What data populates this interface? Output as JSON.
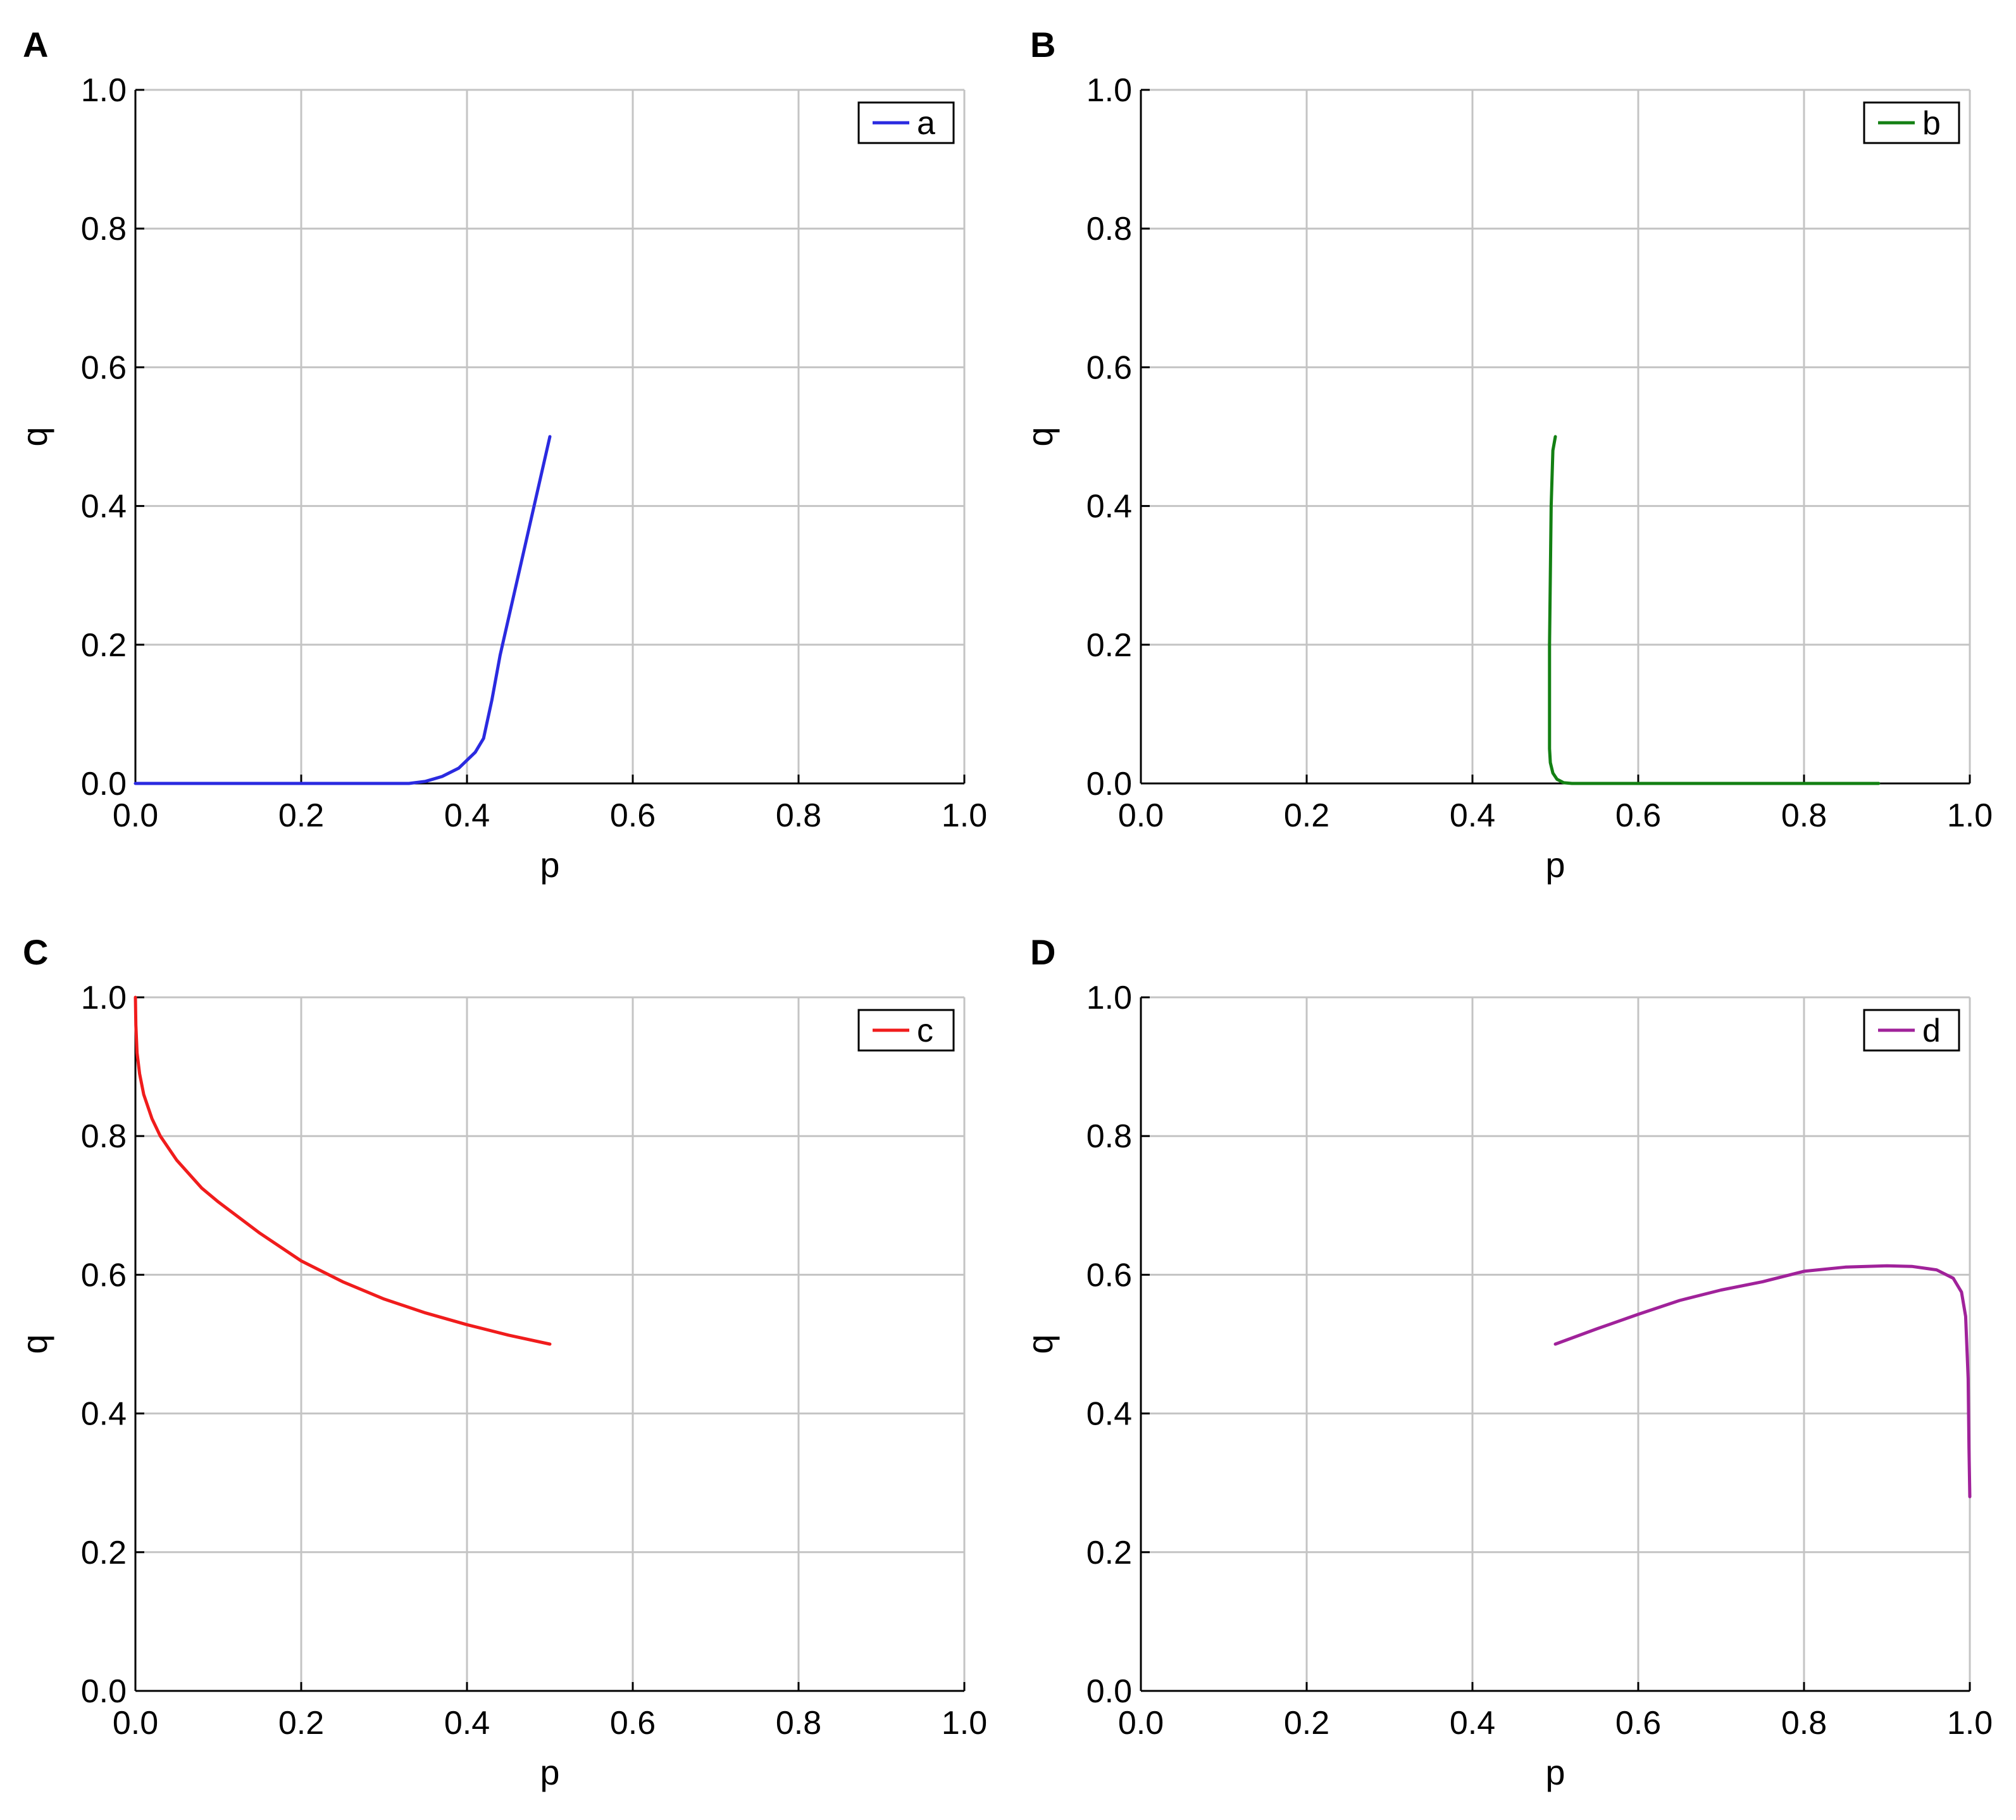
{
  "chart_data": [
    {
      "type": "line",
      "panel": "A",
      "xlabel": "p",
      "ylabel": "q",
      "xlim": [
        0,
        1
      ],
      "ylim": [
        0,
        1
      ],
      "xticks": [
        "0.0",
        "0.2",
        "0.4",
        "0.6",
        "0.8",
        "1.0"
      ],
      "yticks": [
        "0.0",
        "0.2",
        "0.4",
        "0.6",
        "0.8",
        "1.0"
      ],
      "grid": true,
      "legend_position": "top-right",
      "series": [
        {
          "name": "a",
          "color": "#2a2ae0",
          "points": [
            [
              0.0,
              0.0
            ],
            [
              0.3,
              0.0
            ],
            [
              0.33,
              0.0
            ],
            [
              0.35,
              0.003
            ],
            [
              0.37,
              0.01
            ],
            [
              0.39,
              0.022
            ],
            [
              0.41,
              0.045
            ],
            [
              0.42,
              0.065
            ],
            [
              0.43,
              0.12
            ],
            [
              0.44,
              0.185
            ],
            [
              0.46,
              0.29
            ],
            [
              0.48,
              0.395
            ],
            [
              0.5,
              0.5
            ]
          ]
        }
      ]
    },
    {
      "type": "line",
      "panel": "B",
      "xlabel": "p",
      "ylabel": "q",
      "xlim": [
        0,
        1
      ],
      "ylim": [
        0,
        1
      ],
      "xticks": [
        "0.0",
        "0.2",
        "0.4",
        "0.6",
        "0.8",
        "1.0"
      ],
      "yticks": [
        "0.0",
        "0.2",
        "0.4",
        "0.6",
        "0.8",
        "1.0"
      ],
      "grid": true,
      "legend_position": "top-right",
      "series": [
        {
          "name": "b",
          "color": "#138013",
          "points": [
            [
              0.5,
              0.5
            ],
            [
              0.497,
              0.48
            ],
            [
              0.495,
              0.4
            ],
            [
              0.494,
              0.3
            ],
            [
              0.493,
              0.2
            ],
            [
              0.493,
              0.1
            ],
            [
              0.493,
              0.05
            ],
            [
              0.494,
              0.03
            ],
            [
              0.497,
              0.015
            ],
            [
              0.502,
              0.006
            ],
            [
              0.51,
              0.001
            ],
            [
              0.52,
              0.0
            ],
            [
              0.6,
              0.0
            ],
            [
              0.7,
              0.0
            ],
            [
              0.8,
              0.0
            ],
            [
              0.89,
              0.0
            ]
          ]
        }
      ]
    },
    {
      "type": "line",
      "panel": "C",
      "xlabel": "p",
      "ylabel": "q",
      "xlim": [
        0,
        1
      ],
      "ylim": [
        0,
        1
      ],
      "xticks": [
        "0.0",
        "0.2",
        "0.4",
        "0.6",
        "0.8",
        "1.0"
      ],
      "yticks": [
        "0.0",
        "0.2",
        "0.4",
        "0.6",
        "0.8",
        "1.0"
      ],
      "grid": true,
      "legend_position": "top-right",
      "series": [
        {
          "name": "c",
          "color": "#f01c1c",
          "points": [
            [
              0.0,
              1.0
            ],
            [
              0.0005,
              0.96
            ],
            [
              0.002,
              0.92
            ],
            [
              0.005,
              0.89
            ],
            [
              0.01,
              0.86
            ],
            [
              0.02,
              0.825
            ],
            [
              0.03,
              0.8
            ],
            [
              0.05,
              0.765
            ],
            [
              0.08,
              0.725
            ],
            [
              0.1,
              0.705
            ],
            [
              0.15,
              0.66
            ],
            [
              0.2,
              0.62
            ],
            [
              0.25,
              0.59
            ],
            [
              0.3,
              0.565
            ],
            [
              0.35,
              0.545
            ],
            [
              0.4,
              0.528
            ],
            [
              0.45,
              0.513
            ],
            [
              0.5,
              0.5
            ]
          ]
        }
      ]
    },
    {
      "type": "line",
      "panel": "D",
      "xlabel": "p",
      "ylabel": "q",
      "xlim": [
        0,
        1
      ],
      "ylim": [
        0,
        1
      ],
      "xticks": [
        "0.0",
        "0.2",
        "0.4",
        "0.6",
        "0.8",
        "1.0"
      ],
      "yticks": [
        "0.0",
        "0.2",
        "0.4",
        "0.6",
        "0.8",
        "1.0"
      ],
      "grid": true,
      "legend_position": "top-right",
      "series": [
        {
          "name": "d",
          "color": "#a0229a",
          "points": [
            [
              0.5,
              0.5
            ],
            [
              0.55,
              0.522
            ],
            [
              0.6,
              0.543
            ],
            [
              0.65,
              0.563
            ],
            [
              0.7,
              0.578
            ],
            [
              0.75,
              0.59
            ],
            [
              0.8,
              0.605
            ],
            [
              0.85,
              0.611
            ],
            [
              0.9,
              0.613
            ],
            [
              0.93,
              0.612
            ],
            [
              0.96,
              0.607
            ],
            [
              0.98,
              0.595
            ],
            [
              0.99,
              0.575
            ],
            [
              0.995,
              0.54
            ],
            [
              0.998,
              0.45
            ],
            [
              0.999,
              0.35
            ],
            [
              1.0,
              0.28
            ]
          ]
        }
      ]
    }
  ]
}
